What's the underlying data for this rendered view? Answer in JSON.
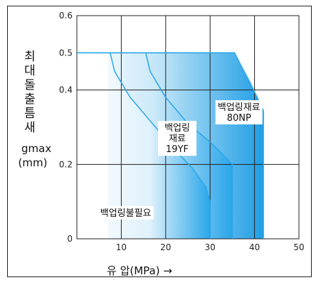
{
  "chart_data": {
    "type": "area",
    "xlabel": "유 압(MPa) →",
    "ylabel": "최대돌출틈새",
    "ylabel_symbol": "gmax",
    "ylabel_unit": "(mm)",
    "xlim": [
      0,
      50
    ],
    "ylim": [
      0,
      0.6
    ],
    "xticks": [
      10,
      20,
      30,
      40,
      50
    ],
    "yticks": [
      0,
      0.2,
      0.4,
      0.5,
      0.6
    ],
    "grid": true,
    "colors": {
      "fill": "#2aa6ea",
      "fill_light": "#dff1fb",
      "line": "#2aa6ea"
    },
    "regions": [
      {
        "name": "백업링불필요",
        "label_lines": [
          "백업링불필요"
        ],
        "label_at": [
          11,
          0.07
        ]
      },
      {
        "name": "백업링 재료 19YF",
        "label_lines": [
          "백업링",
          "재료",
          "19YF"
        ],
        "label_at": [
          22.6,
          0.27
        ],
        "boundary": [
          [
            7.5,
            0.5
          ],
          [
            8.5,
            0.45
          ],
          [
            12,
            0.38
          ],
          [
            17,
            0.31
          ],
          [
            22,
            0.24
          ],
          [
            26,
            0.19
          ],
          [
            29,
            0.14
          ],
          [
            30,
            0.1
          ]
        ]
      },
      {
        "name": "백업링재료 80NP",
        "label_lines": [
          "백업링재료",
          "80NP"
        ],
        "label_at": [
          36.5,
          0.34
        ],
        "boundary": [
          [
            15.5,
            0.5
          ],
          [
            16.5,
            0.45
          ],
          [
            20,
            0.38
          ],
          [
            25,
            0.31
          ],
          [
            30,
            0.26
          ],
          [
            33,
            0.225
          ],
          [
            35,
            0.2
          ]
        ]
      },
      {
        "name": "outer",
        "label_lines": [],
        "boundary": [
          [
            0,
            0.5
          ],
          [
            35.5,
            0.5
          ],
          [
            37,
            0.465
          ],
          [
            39,
            0.42
          ],
          [
            41,
            0.37
          ],
          [
            42,
            0.345
          ],
          [
            42,
            0
          ]
        ]
      }
    ]
  }
}
